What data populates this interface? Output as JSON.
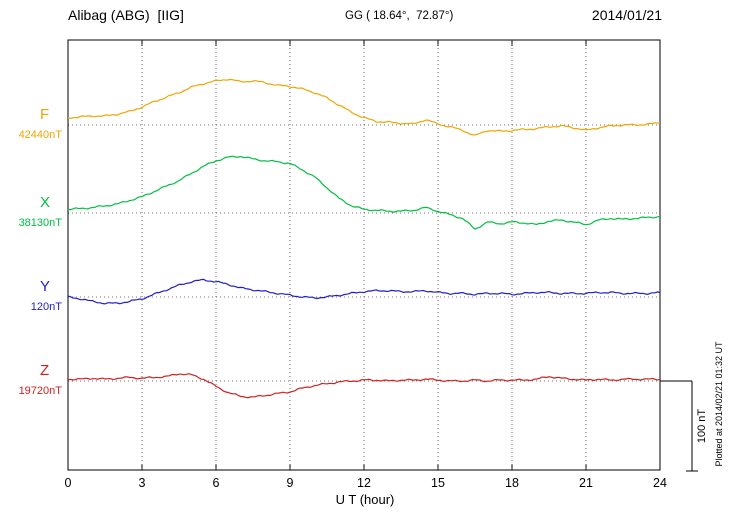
{
  "header": {
    "station": "Alibag (ABG)  [IIG]",
    "coords": "GG ( 18.64°,  72.87°)",
    "date": "2014/01/21"
  },
  "xaxis": {
    "label": "U T (hour)",
    "min": 0,
    "max": 24,
    "ticks": [
      0,
      3,
      6,
      9,
      12,
      15,
      18,
      21,
      24
    ]
  },
  "scalebar": {
    "label": "100 nT",
    "nT": 100
  },
  "footer_note": "Plotted at 2014/02/21 01:32 UT",
  "chart_data": {
    "type": "line",
    "title": "Alibag (ABG) [IIG] magnetogram 2014/01/21",
    "xlabel": "U T (hour)",
    "x_unit": "hour",
    "x_start": 0,
    "x_step": 0.5,
    "xlim": [
      0,
      24
    ],
    "grid": "dotted vertical every 3 h, dotted horizontal baseline per component",
    "amplitude_unit": "nT offset from baseline",
    "series": [
      {
        "name": "F",
        "baseline_label": "42440nT",
        "color": "#f0a500",
        "values": [
          8,
          9,
          10,
          10,
          12,
          15,
          20,
          26,
          31,
          36,
          42,
          46,
          49,
          51,
          48,
          49,
          47,
          44,
          43,
          40,
          36,
          30,
          22,
          14,
          8,
          4,
          3,
          2,
          1,
          6,
          1,
          -2,
          -6,
          -12,
          -6,
          -7,
          -6,
          -5,
          -4,
          -2,
          -1,
          -3,
          -6,
          -3,
          -1,
          0,
          0,
          1,
          2
        ]
      },
      {
        "name": "X",
        "baseline_label": "38130nT",
        "color": "#00c040",
        "values": [
          4,
          5,
          6,
          8,
          10,
          14,
          18,
          24,
          30,
          36,
          44,
          52,
          58,
          62,
          63,
          60,
          58,
          57,
          55,
          48,
          40,
          28,
          16,
          8,
          4,
          3,
          2,
          2,
          3,
          6,
          2,
          -2,
          -6,
          -18,
          -10,
          -12,
          -10,
          -11,
          -13,
          -9,
          -8,
          -10,
          -13,
          -8,
          -6,
          -7,
          -6,
          -5,
          -4
        ]
      },
      {
        "name": "Y",
        "baseline_label": "120nT",
        "color": "#2020c8",
        "values": [
          0,
          -2,
          -5,
          -7,
          -7,
          -5,
          -2,
          3,
          8,
          13,
          17,
          19,
          17,
          14,
          10,
          8,
          6,
          4,
          2,
          0,
          -1,
          0,
          2,
          4,
          6,
          7,
          7,
          6,
          6,
          7,
          5,
          4,
          4,
          3,
          4,
          4,
          3,
          4,
          5,
          5,
          4,
          4,
          4,
          5,
          5,
          4,
          4,
          4,
          5
        ]
      },
      {
        "name": "Z",
        "baseline_label": "19720nT",
        "color": "#d02020",
        "values": [
          2,
          2,
          3,
          2,
          3,
          4,
          3,
          4,
          5,
          8,
          7,
          2,
          -6,
          -13,
          -17,
          -18,
          -16,
          -14,
          -12,
          -8,
          -5,
          -3,
          -1,
          0,
          1,
          1,
          0,
          1,
          1,
          2,
          1,
          0,
          0,
          1,
          0,
          1,
          1,
          1,
          2,
          5,
          3,
          2,
          1,
          2,
          1,
          2,
          2,
          2,
          2
        ]
      }
    ]
  }
}
